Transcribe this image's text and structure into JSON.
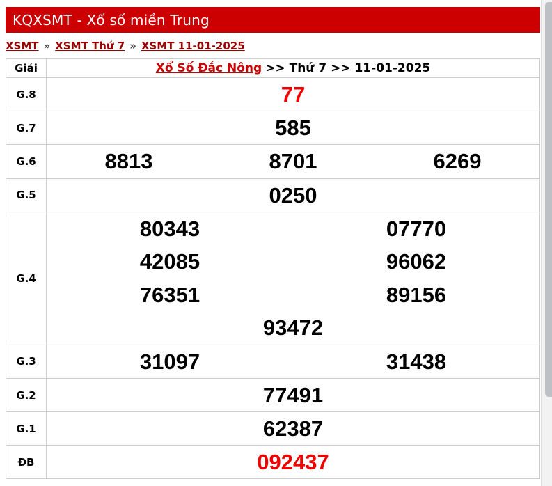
{
  "theme": {
    "bar_red": "#cc0000",
    "link_dark": "#990000",
    "station_red": "#cc0000",
    "num_red": "#f20000",
    "border": "#cccccc",
    "scroll_track": "#f2f2f3",
    "scroll_thumb": "#bdc1c6"
  },
  "page": {
    "title": "KQXSMT - Xổ số miền Trung"
  },
  "breadcrumb": {
    "separator": "»",
    "items": [
      {
        "label": "XSMT"
      },
      {
        "label": "XSMT Thứ 7"
      },
      {
        "label": "XSMT 11-01-2025"
      }
    ]
  },
  "results_table": {
    "header": {
      "prize_col": "Giải",
      "station_link": "Xổ Số Đắc Nông",
      "draw_info": ">> Thứ 7 >> 11-01-2025"
    },
    "prizes": [
      {
        "label": "G.8",
        "numbers": [
          "77"
        ],
        "highlight": true
      },
      {
        "label": "G.7",
        "numbers": [
          "585"
        ],
        "highlight": false
      },
      {
        "label": "G.6",
        "numbers": [
          "8813",
          "8701",
          "6269"
        ],
        "highlight": false
      },
      {
        "label": "G.5",
        "numbers": [
          "0250"
        ],
        "highlight": false
      },
      {
        "label": "G.4",
        "numbers": [
          "80343",
          "07770",
          "42085",
          "96062",
          "76351",
          "89156",
          "93472"
        ],
        "highlight": false
      },
      {
        "label": "G.3",
        "numbers": [
          "31097",
          "31438"
        ],
        "highlight": false
      },
      {
        "label": "G.2",
        "numbers": [
          "77491"
        ],
        "highlight": false
      },
      {
        "label": "G.1",
        "numbers": [
          "62387"
        ],
        "highlight": false
      },
      {
        "label": "ĐB",
        "numbers": [
          "092437"
        ],
        "highlight": true
      }
    ]
  }
}
